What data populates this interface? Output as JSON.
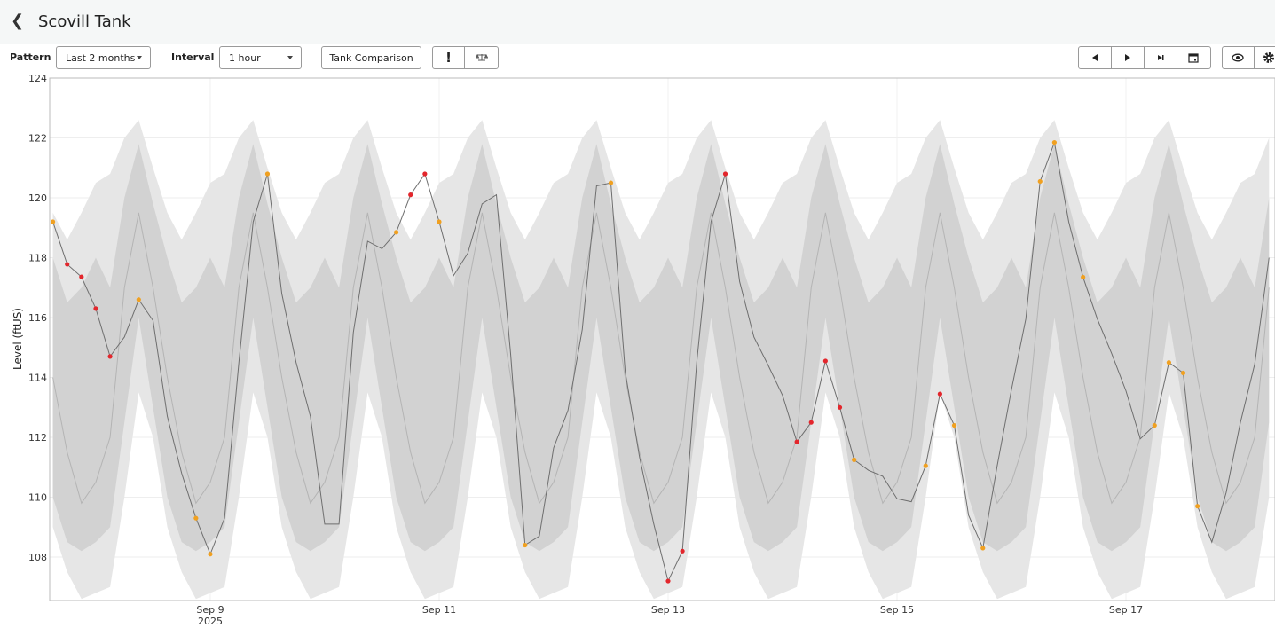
{
  "header": {
    "title": "Scovill Tank",
    "back_icon": "chevron-left-icon"
  },
  "toolbar": {
    "pattern_label": "Pattern",
    "pattern_value": "Last 2 months",
    "interval_label": "Interval",
    "interval_value": "1 hour",
    "tank_comparison": "Tank Comparison",
    "alert_glyph": "!",
    "icons": [
      "exclamation-icon",
      "balance-scale-icon",
      "previous-icon",
      "play-icon",
      "skip-to-end-icon",
      "calendar-icon",
      "eye-icon",
      "gear-icon"
    ]
  },
  "colors": {
    "outer_band": "#e6e6e6",
    "inner_band": "#d2d2d2",
    "median_line": "#b4b4b4",
    "level_line": "#6e6e6e",
    "warn": "#f0a020",
    "alarm": "#e3262c"
  },
  "chart_data": {
    "type": "line",
    "title": "",
    "ylabel": "Level (ftUS)",
    "xlabel": "",
    "ylim": [
      106.55,
      124
    ],
    "xlim": [
      "2025-09-07T14:20",
      "2025-09-18T07:15"
    ],
    "yticks": [
      108,
      110,
      112,
      114,
      116,
      118,
      120,
      122,
      124
    ],
    "xticks": [
      {
        "t": "2025-09-09T00:00",
        "label": "Sep 9",
        "sub": "2025"
      },
      {
        "t": "2025-09-11T00:00",
        "label": "Sep 11",
        "sub": ""
      },
      {
        "t": "2025-09-13T00:00",
        "label": "Sep 13",
        "sub": ""
      },
      {
        "t": "2025-09-15T00:00",
        "label": "Sep 15",
        "sub": ""
      },
      {
        "t": "2025-09-17T00:00",
        "label": "Sep 17",
        "sub": ""
      }
    ],
    "grid": "horizontal",
    "x": [
      "2025-09-07T15:00",
      "2025-09-07T18:00",
      "2025-09-07T21:00",
      "2025-09-08T00:00",
      "2025-09-08T03:00",
      "2025-09-08T06:00",
      "2025-09-08T09:00",
      "2025-09-08T12:00",
      "2025-09-08T15:00",
      "2025-09-08T18:00",
      "2025-09-08T21:00",
      "2025-09-09T00:00",
      "2025-09-09T03:00",
      "2025-09-09T06:00",
      "2025-09-09T09:00",
      "2025-09-09T12:00",
      "2025-09-09T15:00",
      "2025-09-09T18:00",
      "2025-09-09T21:00",
      "2025-09-10T00:00",
      "2025-09-10T03:00",
      "2025-09-10T06:00",
      "2025-09-10T09:00",
      "2025-09-10T12:00",
      "2025-09-10T15:00",
      "2025-09-10T18:00",
      "2025-09-10T21:00",
      "2025-09-11T00:00",
      "2025-09-11T03:00",
      "2025-09-11T06:00",
      "2025-09-11T09:00",
      "2025-09-11T12:00",
      "2025-09-11T15:00",
      "2025-09-11T18:00",
      "2025-09-11T21:00",
      "2025-09-12T00:00",
      "2025-09-12T03:00",
      "2025-09-12T06:00",
      "2025-09-12T09:00",
      "2025-09-12T12:00",
      "2025-09-12T15:00",
      "2025-09-12T18:00",
      "2025-09-12T21:00",
      "2025-09-13T00:00",
      "2025-09-13T03:00",
      "2025-09-13T06:00",
      "2025-09-13T09:00",
      "2025-09-13T12:00",
      "2025-09-13T15:00",
      "2025-09-13T18:00",
      "2025-09-13T21:00",
      "2025-09-14T00:00",
      "2025-09-14T03:00",
      "2025-09-14T06:00",
      "2025-09-14T09:00",
      "2025-09-14T12:00",
      "2025-09-14T15:00",
      "2025-09-14T18:00",
      "2025-09-14T21:00",
      "2025-09-15T00:00",
      "2025-09-15T03:00",
      "2025-09-15T06:00",
      "2025-09-15T09:00",
      "2025-09-15T12:00",
      "2025-09-15T15:00",
      "2025-09-15T18:00",
      "2025-09-15T21:00",
      "2025-09-16T00:00",
      "2025-09-16T03:00",
      "2025-09-16T06:00",
      "2025-09-16T09:00",
      "2025-09-16T12:00",
      "2025-09-16T15:00",
      "2025-09-16T18:00",
      "2025-09-16T21:00",
      "2025-09-17T00:00",
      "2025-09-17T03:00",
      "2025-09-17T06:00",
      "2025-09-17T09:00",
      "2025-09-17T12:00",
      "2025-09-17T15:00",
      "2025-09-17T18:00",
      "2025-09-17T21:00",
      "2025-09-18T00:00",
      "2025-09-18T03:00",
      "2025-09-18T06:00"
    ],
    "level": [
      119.2,
      117.78,
      117.36,
      116.3,
      114.7,
      115.35,
      116.6,
      115.9,
      112.7,
      110.8,
      109.3,
      108.1,
      109.3,
      114.5,
      119.2,
      120.8,
      116.8,
      114.5,
      112.7,
      109.1,
      109.1,
      115.5,
      118.55,
      118.3,
      118.85,
      120.1,
      120.8,
      119.2,
      117.4,
      118.15,
      119.8,
      120.1,
      114.75,
      108.4,
      108.7,
      111.65,
      112.9,
      115.6,
      120.4,
      120.5,
      114.2,
      111.35,
      109.1,
      107.2,
      108.2,
      114.5,
      119.2,
      120.8,
      117.2,
      115.35,
      114.4,
      113.4,
      111.85,
      112.5,
      114.55,
      113.0,
      111.25,
      110.9,
      110.7,
      109.95,
      109.85,
      111.05,
      113.45,
      112.4,
      109.4,
      108.3,
      111.05,
      113.6,
      115.95,
      120.55,
      121.85,
      119.2,
      117.35,
      115.95,
      114.8,
      113.55,
      111.95,
      112.4,
      114.5,
      114.15,
      109.7,
      108.5,
      110.15,
      112.5,
      114.45,
      118.0
    ],
    "flags": [
      "warn",
      "alarm",
      "alarm",
      "alarm",
      "alarm",
      "",
      "warn",
      "",
      "",
      "",
      "warn",
      "warn",
      "",
      "",
      "",
      "warn",
      "",
      "",
      "",
      "",
      "",
      "",
      "",
      "",
      "warn",
      "alarm",
      "alarm",
      "warn",
      "",
      "",
      "",
      "",
      "",
      "warn",
      "",
      "",
      "",
      "",
      "",
      "warn",
      "",
      "",
      "",
      "alarm",
      "alarm",
      "",
      "",
      "alarm",
      "",
      "",
      "",
      "",
      "alarm",
      "alarm",
      "alarm",
      "alarm",
      "warn",
      "",
      "",
      "",
      "",
      "warn",
      "alarm",
      "warn",
      "",
      "warn",
      "",
      "",
      "",
      "warn",
      "warn",
      "",
      "warn",
      "",
      "",
      "",
      "",
      "warn",
      "warn",
      "warn",
      "warn",
      "",
      "",
      "",
      "",
      ""
    ],
    "median": [
      114,
      111.5,
      109.8,
      110.5,
      112,
      117,
      119.5,
      117,
      114,
      111.5,
      109.8,
      110.5,
      112,
      117,
      119.5,
      117,
      114,
      111.5,
      109.8,
      110.5,
      112,
      117,
      119.5,
      117,
      114,
      111.5,
      109.8,
      110.5,
      112,
      117,
      119.5,
      117,
      114,
      111.5,
      109.8,
      110.5,
      112,
      117,
      119.5,
      117,
      114,
      111.5,
      109.8,
      110.5,
      112,
      117,
      119.5,
      117,
      114,
      111.5,
      109.8,
      110.5,
      112,
      117,
      119.5,
      117,
      114,
      111.5,
      109.8,
      110.5,
      112,
      117,
      119.5,
      117,
      114,
      111.5,
      109.8,
      110.5,
      112,
      117,
      119.5,
      117,
      114,
      111.5,
      109.8,
      110.5,
      112,
      117,
      119.5,
      117,
      114,
      111.5,
      109.8,
      110.5,
      112,
      117
    ],
    "inner_upper": [
      118,
      116.5,
      117,
      118,
      117,
      120,
      121.8,
      119.8,
      118,
      116.5,
      117,
      118,
      117,
      120,
      121.8,
      119.8,
      118,
      116.5,
      117,
      118,
      117,
      120,
      121.8,
      119.8,
      118,
      116.5,
      117,
      118,
      117,
      120,
      121.8,
      119.8,
      118,
      116.5,
      117,
      118,
      117,
      120,
      121.8,
      119.8,
      118,
      116.5,
      117,
      118,
      117,
      120,
      121.8,
      119.8,
      118,
      116.5,
      117,
      118,
      117,
      120,
      121.8,
      119.8,
      118,
      116.5,
      117,
      118,
      117,
      120,
      121.8,
      119.8,
      118,
      116.5,
      117,
      118,
      117,
      120,
      121.8,
      119.8,
      118,
      116.5,
      117,
      118,
      117,
      120,
      121.8,
      119.8,
      118,
      116.5,
      117,
      118,
      117,
      120
    ],
    "inner_lower": [
      110,
      108.5,
      108.2,
      108.5,
      109,
      112.5,
      116,
      113,
      110,
      108.5,
      108.2,
      108.5,
      109,
      112.5,
      116,
      113,
      110,
      108.5,
      108.2,
      108.5,
      109,
      112.5,
      116,
      113,
      110,
      108.5,
      108.2,
      108.5,
      109,
      112.5,
      116,
      113,
      110,
      108.5,
      108.2,
      108.5,
      109,
      112.5,
      116,
      113,
      110,
      108.5,
      108.2,
      108.5,
      109,
      112.5,
      116,
      113,
      110,
      108.5,
      108.2,
      108.5,
      109,
      112.5,
      116,
      113,
      110,
      108.5,
      108.2,
      108.5,
      109,
      112.5,
      116,
      113,
      110,
      108.5,
      108.2,
      108.5,
      109,
      112.5,
      116,
      113,
      110,
      108.5,
      108.2,
      108.5,
      109,
      112.5,
      116,
      113,
      110,
      108.5,
      108.2,
      108.5,
      109,
      112.5
    ],
    "outer_upper": [
      119.5,
      118.6,
      119.5,
      120.5,
      120.8,
      122,
      122.6,
      121,
      119.5,
      118.6,
      119.5,
      120.5,
      120.8,
      122,
      122.6,
      121,
      119.5,
      118.6,
      119.5,
      120.5,
      120.8,
      122,
      122.6,
      121,
      119.5,
      118.6,
      119.5,
      120.5,
      120.8,
      122,
      122.6,
      121,
      119.5,
      118.6,
      119.5,
      120.5,
      120.8,
      122,
      122.6,
      121,
      119.5,
      118.6,
      119.5,
      120.5,
      120.8,
      122,
      122.6,
      121,
      119.5,
      118.6,
      119.5,
      120.5,
      120.8,
      122,
      122.6,
      121,
      119.5,
      118.6,
      119.5,
      120.5,
      120.8,
      122,
      122.6,
      121,
      119.5,
      118.6,
      119.5,
      120.5,
      120.8,
      122,
      122.6,
      121,
      119.5,
      118.6,
      119.5,
      120.5,
      120.8,
      122,
      122.6,
      121,
      119.5,
      118.6,
      119.5,
      120.5,
      120.8,
      122
    ],
    "outer_lower": [
      109,
      107.5,
      106.6,
      106.8,
      107,
      110,
      113.5,
      112,
      109,
      107.5,
      106.6,
      106.8,
      107,
      110,
      113.5,
      112,
      109,
      107.5,
      106.6,
      106.8,
      107,
      110,
      113.5,
      112,
      109,
      107.5,
      106.6,
      106.8,
      107,
      110,
      113.5,
      112,
      109,
      107.5,
      106.6,
      106.8,
      107,
      110,
      113.5,
      112,
      109,
      107.5,
      106.6,
      106.8,
      107,
      110,
      113.5,
      112,
      109,
      107.5,
      106.6,
      106.8,
      107,
      110,
      113.5,
      112,
      109,
      107.5,
      106.6,
      106.8,
      107,
      110,
      113.5,
      112,
      109,
      107.5,
      106.6,
      106.8,
      107,
      110,
      113.5,
      112,
      109,
      107.5,
      106.6,
      106.8,
      107,
      110,
      113.5,
      112,
      109,
      107.5,
      106.6,
      106.8,
      107,
      110
    ]
  }
}
